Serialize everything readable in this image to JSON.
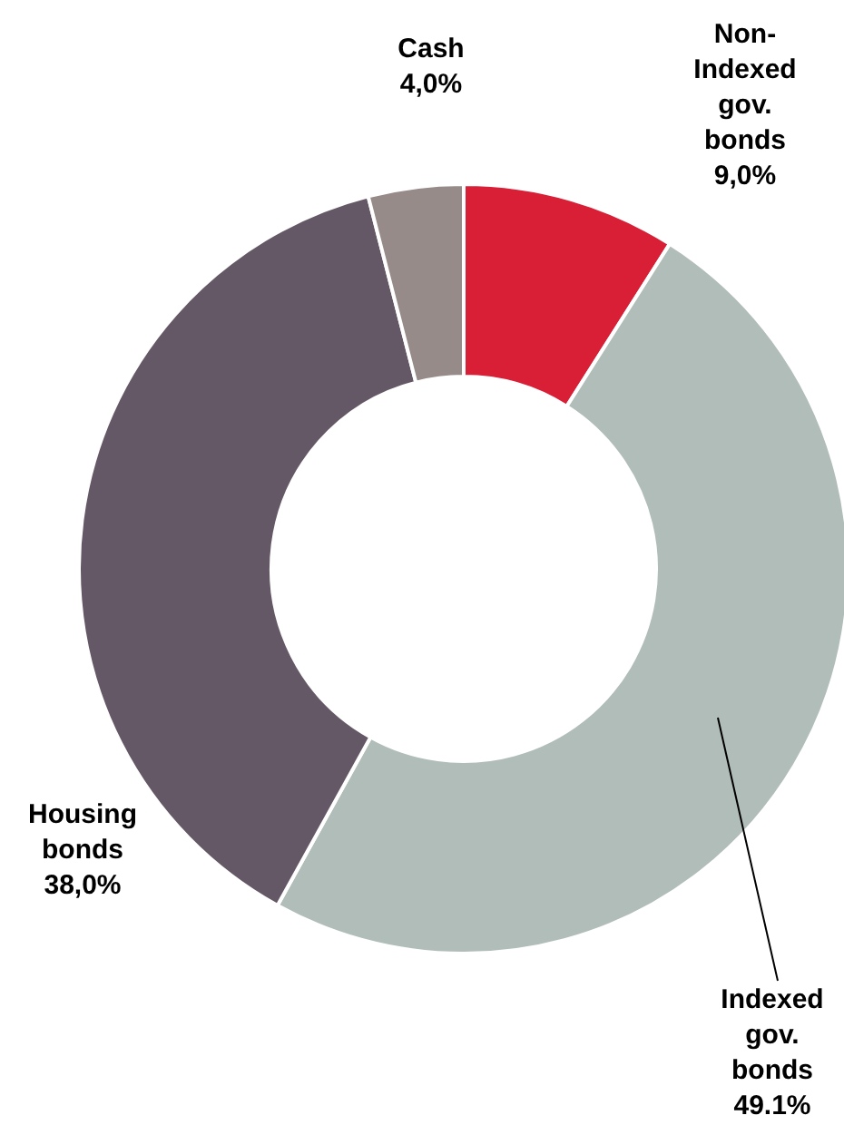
{
  "chart_data": {
    "type": "donut",
    "categories": [
      "Non-\nIndexed\ngov.\nbonds",
      "Indexed\ngov.\nbonds",
      "Housing\nbonds",
      "Cash"
    ],
    "values": [
      9.0,
      49.1,
      38.0,
      4.0
    ],
    "colors": [
      "#d91f36",
      "#b0bdb8",
      "#655866",
      "#968b88"
    ],
    "value_labels": [
      "9,0%",
      "49.1%",
      "38,0%",
      "4,0%"
    ]
  }
}
